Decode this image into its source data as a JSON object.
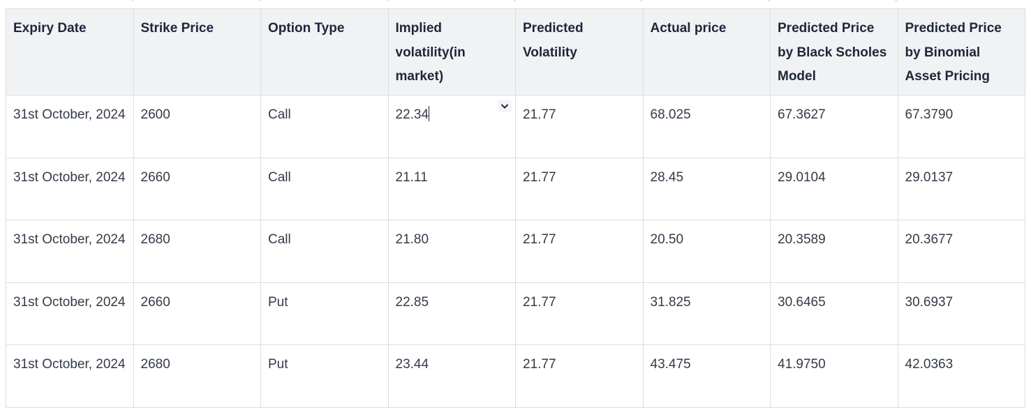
{
  "table": {
    "headers": [
      "Expiry Date",
      "Strike Price",
      "Option Type",
      "Implied volatility(in market)",
      "Predicted Volatility",
      "Actual price",
      "Predicted Price by Black Scholes Model",
      "Predicted Price by Binomial Asset Pricing"
    ],
    "rows": [
      [
        "31st October, 2024",
        "2600",
        "Call",
        "22.34",
        "21.77",
        "68.025",
        "67.3627",
        "67.3790"
      ],
      [
        "31st October, 2024",
        "2660",
        "Call",
        "21.11",
        "21.77",
        "28.45",
        "29.0104",
        "29.0137"
      ],
      [
        "31st October, 2024",
        "2680",
        "Call",
        "21.80",
        "21.77",
        "20.50",
        "20.3589",
        "20.3677"
      ],
      [
        "31st October, 2024",
        "2660",
        "Put",
        "22.85",
        "21.77",
        "31.825",
        "30.6465",
        "30.6937"
      ],
      [
        "31st October, 2024",
        "2680",
        "Put",
        "23.44",
        "21.77",
        "43.475",
        "41.9750",
        "42.0363"
      ]
    ]
  },
  "icons": {
    "cell_menu": "chevron-down-icon"
  }
}
